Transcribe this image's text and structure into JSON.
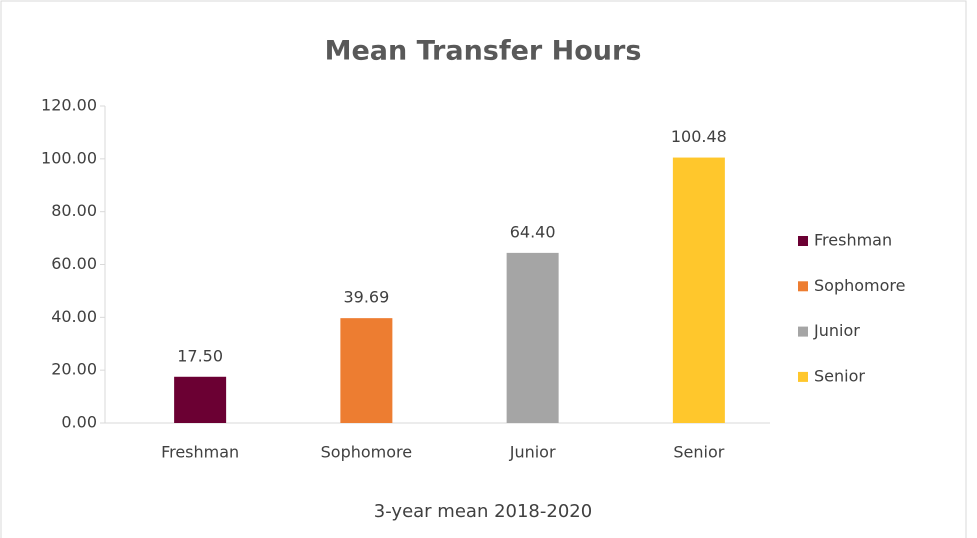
{
  "chart_data": {
    "type": "bar",
    "title": "Mean Transfer Hours",
    "x_label": "3-year mean 2018-2020",
    "categories": [
      "Freshman",
      "Sophomore",
      "Junior",
      "Senior"
    ],
    "values": [
      17.5,
      39.69,
      64.4,
      100.48
    ],
    "value_labels": [
      "17.50",
      "39.69",
      "64.40",
      "100.48"
    ],
    "colors": [
      "#6b0033",
      "#ed7d31",
      "#a5a5a5",
      "#ffc72c"
    ],
    "ylim": [
      0,
      120
    ],
    "yticks": [
      {
        "value": 0,
        "label": "0.00"
      },
      {
        "value": 20,
        "label": "20.00"
      },
      {
        "value": 40,
        "label": "40.00"
      },
      {
        "value": 60,
        "label": "60.00"
      },
      {
        "value": 80,
        "label": "80.00"
      },
      {
        "value": 100,
        "label": "100.00"
      },
      {
        "value": 120,
        "label": "120.00"
      }
    ],
    "legend": "right"
  }
}
